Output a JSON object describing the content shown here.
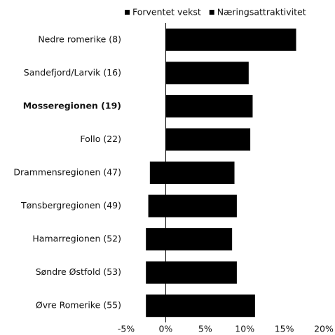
{
  "chart_data": {
    "type": "bar",
    "orientation": "horizontal",
    "stacked": true,
    "categories": [
      "Nedre romerike (8)",
      "Sandefjord/Larvik (16)",
      "Mosseregionen (19)",
      "Follo (22)",
      "Drammensregionen (47)",
      "Tønsbergregionen (49)",
      "Hamarregionen (52)",
      "Søndre Østfold (53)",
      "Øvre Romerike (55)"
    ],
    "bold_category": 2,
    "series": [
      {
        "name": "Forventet vekst",
        "color": "#000000",
        "values": [
          16.5,
          10.5,
          11,
          10.7,
          8.7,
          9,
          8.4,
          9,
          11.3
        ]
      },
      {
        "name": "Næringsattraktivitet",
        "color": "#000000",
        "values": [
          0,
          0,
          0,
          0,
          -2,
          -2.2,
          -2.5,
          -2.5,
          -2.5
        ]
      }
    ],
    "xlim": [
      -5,
      20
    ],
    "xticks": [
      {
        "value": -5,
        "label": "-5%"
      },
      {
        "value": 0,
        "label": "0%"
      },
      {
        "value": 5,
        "label": "5%"
      },
      {
        "value": 10,
        "label": "10%"
      },
      {
        "value": 15,
        "label": "15%"
      },
      {
        "value": 20,
        "label": "20%"
      }
    ],
    "legend": "top"
  }
}
